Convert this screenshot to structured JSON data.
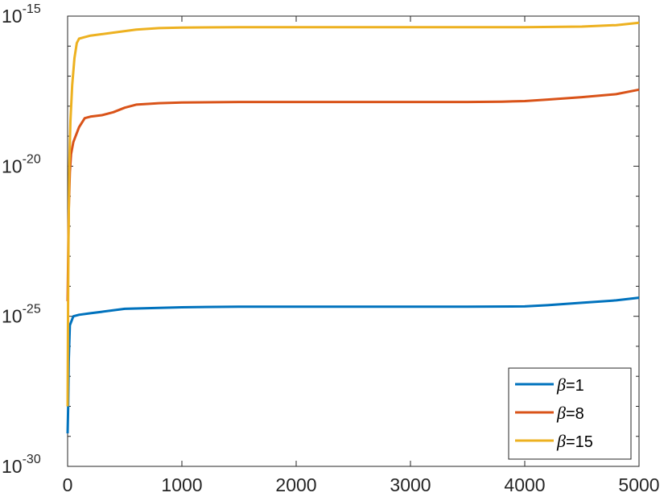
{
  "chart_data": {
    "type": "line",
    "title": "",
    "xlabel": "",
    "ylabel": "",
    "xlim": [
      0,
      5000
    ],
    "ylim_exponent": [
      -30,
      -15
    ],
    "y_scale": "log",
    "grid": false,
    "legend_position": "bottom-right",
    "x_ticks": [
      "0",
      "1000",
      "2000",
      "3000",
      "4000",
      "5000"
    ],
    "y_ticks": [
      {
        "base": "10",
        "exp": "-30",
        "value": -30
      },
      {
        "base": "10",
        "exp": "-25",
        "value": -25
      },
      {
        "base": "10",
        "exp": "-20",
        "value": -20
      },
      {
        "base": "10",
        "exp": "-15",
        "value": -15
      }
    ],
    "series": [
      {
        "name_symbol": "β",
        "name_value": "=1",
        "color": "#0072BD",
        "x": [
          0,
          5,
          10,
          20,
          50,
          100,
          200,
          300,
          500,
          800,
          1000,
          1500,
          2000,
          3000,
          3500,
          4000,
          4200,
          4500,
          4800,
          5000
        ],
        "log10_y": [
          -28.9,
          -28.0,
          -26.5,
          -25.3,
          -25.0,
          -24.95,
          -24.9,
          -24.85,
          -24.75,
          -24.72,
          -24.7,
          -24.68,
          -24.68,
          -24.68,
          -24.68,
          -24.67,
          -24.63,
          -24.55,
          -24.47,
          -24.38
        ]
      },
      {
        "name_symbol": "β",
        "name_value": "=8",
        "color": "#D95319",
        "x": [
          0,
          5,
          10,
          20,
          30,
          50,
          70,
          100,
          150,
          200,
          300,
          400,
          500,
          600,
          800,
          1000,
          1500,
          2000,
          3000,
          3500,
          3800,
          4000,
          4200,
          4500,
          4800,
          5000
        ],
        "log10_y": [
          -24.5,
          -23.0,
          -21.5,
          -20.2,
          -19.6,
          -19.2,
          -19.0,
          -18.7,
          -18.4,
          -18.35,
          -18.3,
          -18.2,
          -18.05,
          -17.95,
          -17.9,
          -17.88,
          -17.86,
          -17.86,
          -17.86,
          -17.86,
          -17.85,
          -17.83,
          -17.78,
          -17.7,
          -17.6,
          -17.45
        ]
      },
      {
        "name_symbol": "β",
        "name_value": "=15",
        "color": "#EDB120",
        "x": [
          0,
          3,
          8,
          15,
          25,
          40,
          60,
          80,
          100,
          150,
          200,
          300,
          400,
          500,
          600,
          800,
          1000,
          1500,
          2000,
          3000,
          4000,
          4500,
          4800,
          5000
        ],
        "log10_y": [
          -28.0,
          -25.5,
          -22.5,
          -20.0,
          -18.5,
          -17.3,
          -16.4,
          -15.9,
          -15.75,
          -15.7,
          -15.65,
          -15.6,
          -15.55,
          -15.5,
          -15.45,
          -15.4,
          -15.38,
          -15.37,
          -15.37,
          -15.37,
          -15.37,
          -15.35,
          -15.3,
          -15.22
        ]
      }
    ]
  }
}
